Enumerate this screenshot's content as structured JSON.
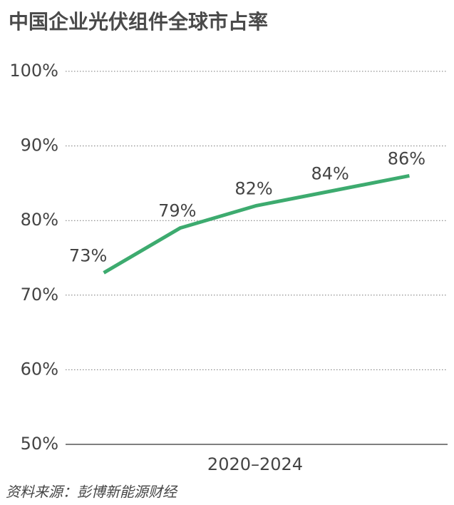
{
  "chart_data": {
    "type": "line",
    "title": "中国企业光伏组件全球市占率",
    "categories": [
      null,
      null,
      null,
      null,
      null
    ],
    "xlabel": "2020–2024",
    "series": [
      {
        "name": "市占率",
        "color": "#3dab6f",
        "values": [
          73,
          79,
          82,
          84,
          86
        ],
        "value_labels": [
          "73%",
          "79%",
          "82%",
          "84%",
          "86%"
        ]
      }
    ],
    "ylim": [
      50,
      100
    ],
    "yticks": [
      {
        "value": 50,
        "label": "50%"
      },
      {
        "value": 60,
        "label": "60%"
      },
      {
        "value": 70,
        "label": "70%"
      },
      {
        "value": 80,
        "label": "80%"
      },
      {
        "value": 90,
        "label": "90%"
      },
      {
        "value": 100,
        "label": "100%"
      }
    ],
    "grid": true,
    "source": "资料来源：彭博新能源财经"
  }
}
